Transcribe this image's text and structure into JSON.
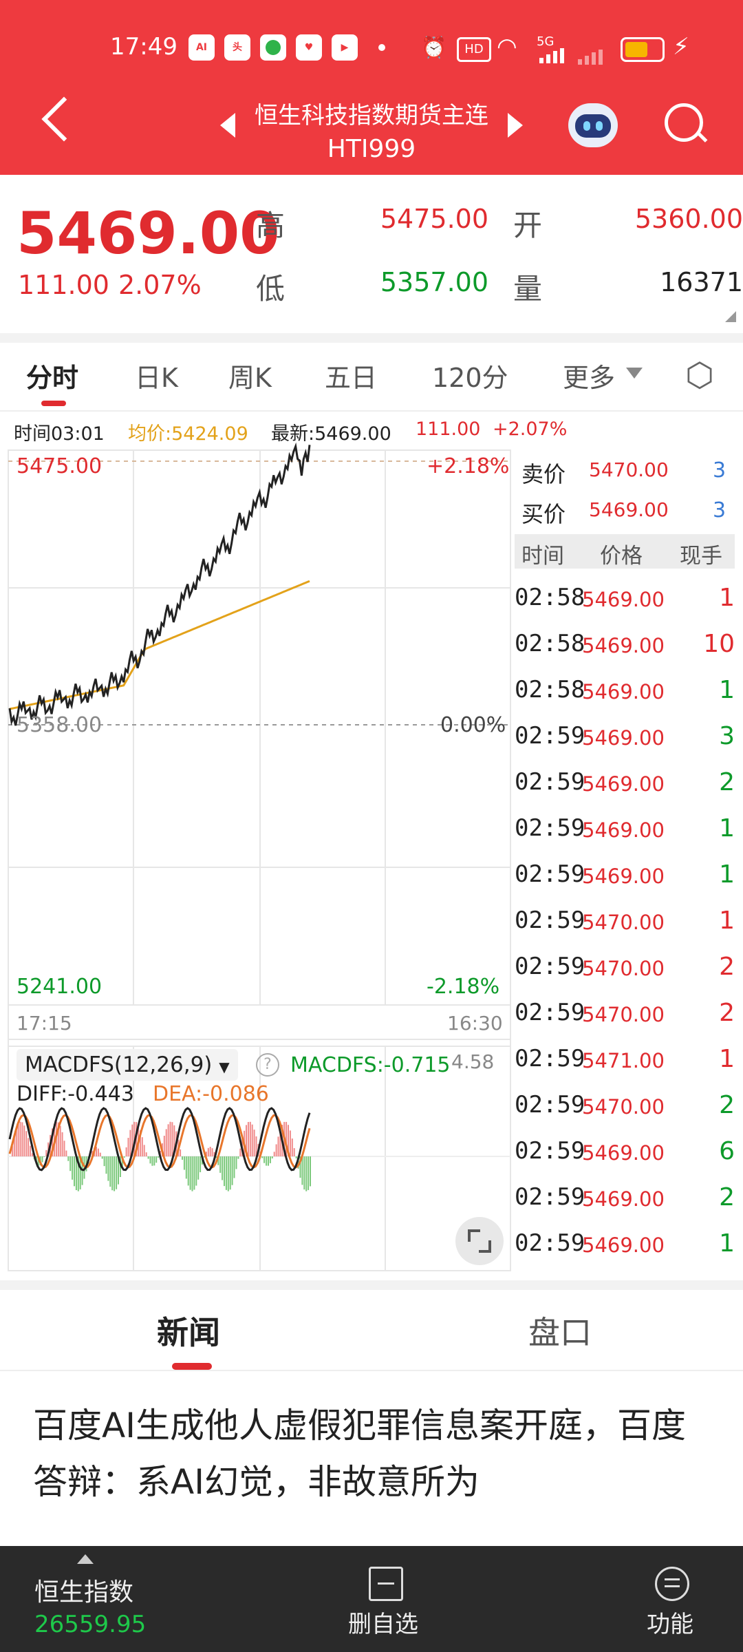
{
  "status_bar": {
    "time": "17:49",
    "icons": [
      "app-icon-ai",
      "app-icon-toutiao",
      "app-icon-green",
      "app-icon-heart",
      "app-icon-video"
    ],
    "net": "5G",
    "hd": "HD"
  },
  "header": {
    "title": "恒生科技指数期货主连",
    "code": "HTI999"
  },
  "quote": {
    "price": "5469.00",
    "change": "111.00",
    "change_pct": "2.07%",
    "high_label": "高",
    "high": "5475.00",
    "open_label": "开",
    "open": "5360.00",
    "low_label": "低",
    "low": "5357.00",
    "volume_label": "量",
    "volume": "16371"
  },
  "tabs": [
    "分时",
    "日K",
    "周K",
    "五日",
    "120分",
    "更多"
  ],
  "info_bar": {
    "time": "时间03:01",
    "avg": "均价:5424.09",
    "latest": "最新:5469.00",
    "change": "111.00",
    "pct": "+2.07%"
  },
  "chart_labels": {
    "top_price": "5475.00",
    "top_pct": "+2.18%",
    "mid_price": "5358.00",
    "mid_pct": "0.00%",
    "bottom_price": "5241.00",
    "bottom_pct": "-2.18%",
    "start_time": "17:15",
    "end_time": "16:30"
  },
  "macd": {
    "name": "MACDFS(12,26,9)",
    "value": "MACDFS:-0.715",
    "right": "4.58",
    "diff": "DIFF:-0.443",
    "dea": "DEA:-0.086"
  },
  "order_book": {
    "sell_label": "卖价",
    "sell_price": "5470.00",
    "sell_vol": "3",
    "buy_label": "买价",
    "buy_price": "5469.00",
    "buy_vol": "3",
    "col_time": "时间",
    "col_price": "价格",
    "col_vol": "现手"
  },
  "ticks": [
    {
      "time": "02:58",
      "price": "5469.00",
      "vol": "1",
      "dir": "up"
    },
    {
      "time": "02:58",
      "price": "5469.00",
      "vol": "10",
      "dir": "up"
    },
    {
      "time": "02:58",
      "price": "5469.00",
      "vol": "1",
      "dir": "down"
    },
    {
      "time": "02:59",
      "price": "5469.00",
      "vol": "3",
      "dir": "down"
    },
    {
      "time": "02:59",
      "price": "5469.00",
      "vol": "2",
      "dir": "down"
    },
    {
      "time": "02:59",
      "price": "5469.00",
      "vol": "1",
      "dir": "down"
    },
    {
      "time": "02:59",
      "price": "5469.00",
      "vol": "1",
      "dir": "down"
    },
    {
      "time": "02:59",
      "price": "5470.00",
      "vol": "1",
      "dir": "up"
    },
    {
      "time": "02:59",
      "price": "5470.00",
      "vol": "2",
      "dir": "up"
    },
    {
      "time": "02:59",
      "price": "5470.00",
      "vol": "2",
      "dir": "up"
    },
    {
      "time": "02:59",
      "price": "5471.00",
      "vol": "1",
      "dir": "up"
    },
    {
      "time": "02:59",
      "price": "5470.00",
      "vol": "2",
      "dir": "down"
    },
    {
      "time": "02:59",
      "price": "5469.00",
      "vol": "6",
      "dir": "down"
    },
    {
      "time": "02:59",
      "price": "5469.00",
      "vol": "2",
      "dir": "down"
    },
    {
      "time": "02:59",
      "price": "5469.00",
      "vol": "1",
      "dir": "down"
    }
  ],
  "news_tabs": [
    "新闻",
    "盘口"
  ],
  "headline": "百度AI生成他人虚假犯罪信息案开庭，百度答辩：系AI幻觉，非故意所为",
  "bottom": {
    "index_name": "恒生指数",
    "index_value": "26559.95",
    "delete_label": "删自选",
    "func_label": "功能"
  },
  "colors": {
    "header": "#ee3a3f",
    "up": "#e02b2f",
    "down": "#0d9a2a",
    "avg_line": "#e3a21a"
  }
}
